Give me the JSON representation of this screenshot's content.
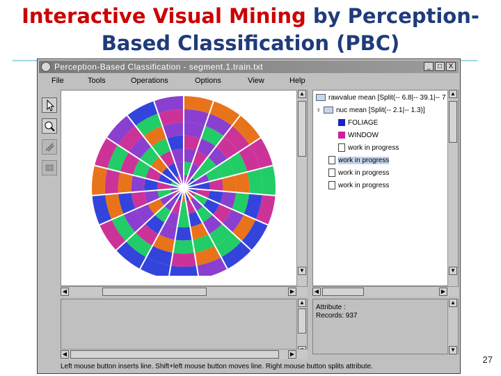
{
  "slide": {
    "title_red": "Interactive Visual Mining",
    "title_rest_line1": "by Perception-",
    "title_line2": "Based Classification (PBC)",
    "page_number": "27"
  },
  "window": {
    "title": "Perception-Based Classification - segment.1.train.txt",
    "buttons": {
      "minimize": "_",
      "maximize": "□",
      "close": "X"
    },
    "menu": [
      "File",
      "Tools",
      "Operations",
      "Options",
      "View",
      "Help"
    ]
  },
  "toolbar": {
    "icons": [
      "pointer-icon",
      "zoom-icon",
      "split-tool-icon",
      "merge-tool-icon"
    ]
  },
  "tree": {
    "nodes": [
      {
        "label": "rawvalue mean [Split(-- 6.8|-- 39.1|-- 7",
        "icon": "folder-icon"
      },
      {
        "label": "nuc mean [Split(-- 2.1|-- 1.3)]",
        "icon": "folder-icon"
      },
      {
        "label": "FOLIAGE",
        "icon": "class-swatch",
        "color": "#1b22c8"
      },
      {
        "label": "WINDOW",
        "icon": "class-swatch",
        "color": "#d01ea0"
      },
      {
        "label": "work in progress",
        "icon": "document-icon"
      },
      {
        "label": "work in progress",
        "icon": "document-icon"
      },
      {
        "label": "work in progress",
        "icon": "document-icon"
      },
      {
        "label": "work in progress",
        "icon": "document-icon"
      }
    ]
  },
  "info": {
    "attribute_label": "Attribute :",
    "records_label": "Records: 937"
  },
  "status_text": "Left mouse button inserts line. Shift+left mouse button moves line. Right mouse button splits attribute.",
  "colors": {
    "title_red": "#cc0000",
    "title_blue": "#1f3b7a",
    "orange": "#e8731a",
    "green": "#22cc66",
    "blue": "#3344dd",
    "purple": "#8a3fd0",
    "magenta": "#cc3399"
  }
}
